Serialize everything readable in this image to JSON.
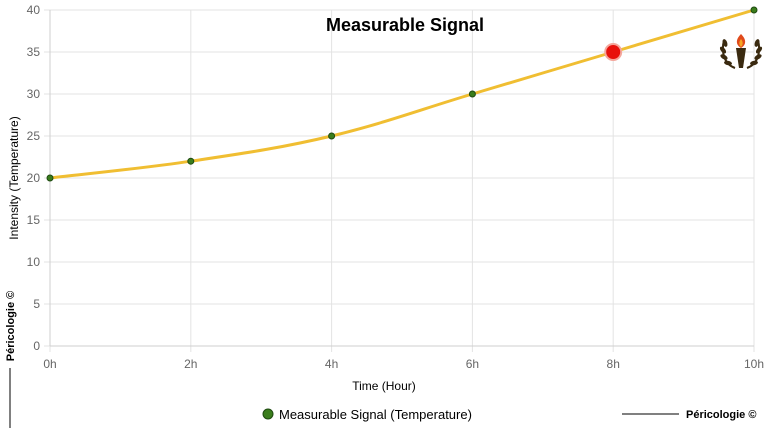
{
  "chart_data": {
    "type": "line",
    "title": "Measurable Signal",
    "xlabel": "Time (Hour)",
    "ylabel": "Intensity (Temperature)",
    "x": [
      "0h",
      "2h",
      "4h",
      "6h",
      "8h",
      "10h"
    ],
    "series": [
      {
        "name": "Measurable Signal (Temperature)",
        "values": [
          20,
          22,
          25,
          30,
          35,
          40
        ],
        "line_color": "#f0be32",
        "point_color": "#3a7d1c"
      }
    ],
    "highlight": {
      "index": 4,
      "color": "#e8120c"
    },
    "ylim": [
      0,
      40
    ],
    "yticks": [
      0,
      5,
      10,
      15,
      20,
      25,
      30,
      35,
      40
    ],
    "grid": true,
    "legend_position": "bottom"
  },
  "watermark": {
    "left_text": "Péricologie ©",
    "bottom_right_text": "Péricologie ©"
  },
  "logo": {
    "icon": "torch-laurel-icon",
    "colors": {
      "flame": "#e04a1c",
      "laurel": "#3a2a10"
    }
  }
}
